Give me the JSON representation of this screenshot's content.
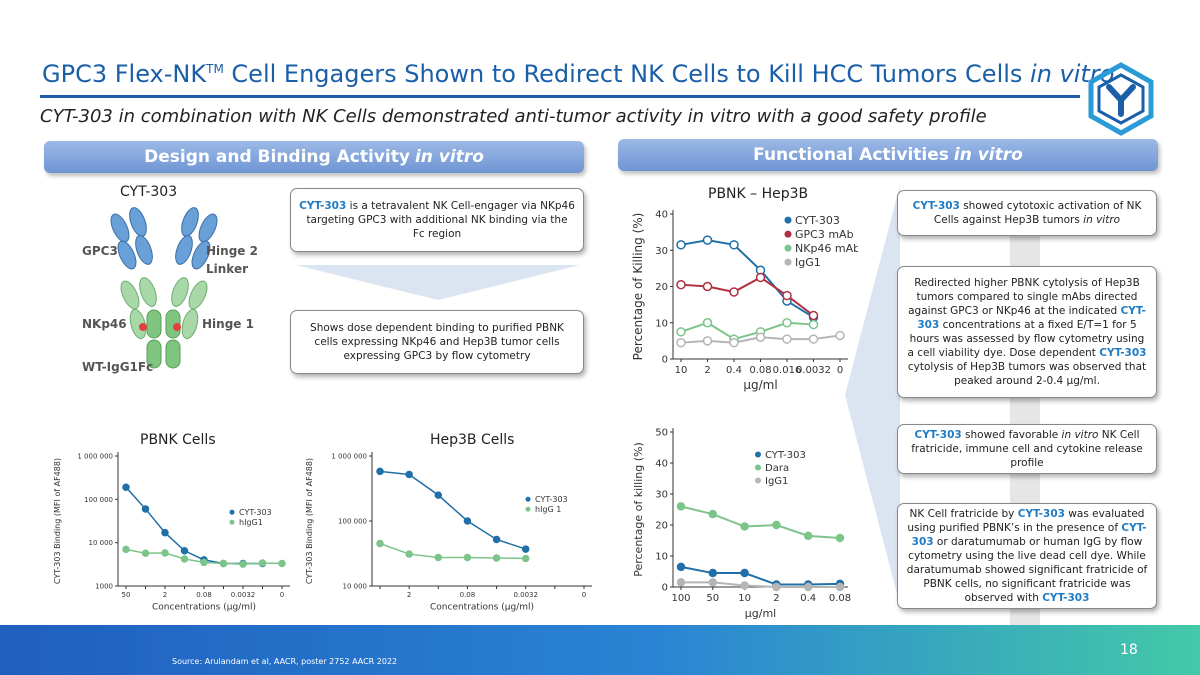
{
  "title": {
    "main": "GPC3 Flex-NK",
    "tm": "TM",
    "rest": " Cell Engagers Shown to Redirect NK Cells to Kill HCC Tumors Cells ",
    "italic": "in vitro"
  },
  "subtitle": "CYT-303 in combination with NK Cells demonstrated anti-tumor activity in vitro with a good safety profile",
  "banners": {
    "left": {
      "text": "Design and Binding Activity",
      "italic": "in vitro"
    },
    "right": {
      "text": "Functional Activities",
      "italic": "in vitro"
    }
  },
  "diagram": {
    "title": "CYT-303",
    "labels": {
      "gpc3": "GPC3",
      "hinge2a": "Hinge 2",
      "hinge2b": "Linker",
      "nkp46": "NKp46",
      "hinge1": "Hinge 1",
      "fc": "WT-IgG1Fc"
    }
  },
  "boxes": {
    "design": {
      "hl": "CYT-303",
      "rest": " is a tetravalent NK Cell-engager via NKp46 targeting GPC3 with additional NK binding via the Fc region"
    },
    "binding": "Shows dose dependent binding to purified PBNK cells expressing NKp46 and Hep3B tumor cells expressing GPC3 by flow cytometry",
    "cyto": {
      "hl": "CYT-303",
      "rest": " showed cytotoxic activation of NK Cells against Hep3B tumors ",
      "italic": "in vitro"
    },
    "redirect": {
      "t1": "Redirected higher PBNK cytolysis of Hep3B tumors compared to single mAbs directed against GPC3 or NKp46 at the indicated ",
      "hl1": "CYT-303",
      "t2": " concentrations at a fixed E/T=1 for 5 hours was assessed by flow cytometry using a cell viability dye. Dose dependent ",
      "hl2": "CYT-303",
      "t3": " cytolysis of Hep3B tumors was observed that peaked around 2-0.4 µg/ml."
    },
    "fratricide": {
      "hl": "CYT-303",
      "t1": " showed favorable ",
      "italic": "in vitro",
      "t2": " NK Cell fratricide, immune cell and cytokine release profile"
    },
    "nkfrat": {
      "t1": "NK Cell fratricide by ",
      "hl1": "CYT-303",
      "t2": " was evaluated using purified PBNK’s in the presence of ",
      "hl2": "CYT-303",
      "t3": " or daratumumab or human IgG by flow cytometry using the live dead cell dye. While daratumumab showed significant fratricide of PBNK cells, no significant fratricide was observed with ",
      "hl3": "CYT-303"
    }
  },
  "footer": {
    "source": "Source: Arulandam et al, AACR, poster 2752 AACR 2022",
    "page": "18"
  },
  "colors": {
    "brand": "#1a5fa8",
    "cyt303": "#1f6fa8",
    "gpc3": "#b03040",
    "nkp46": "#7cc48a",
    "igg1": "#b5b5b5"
  },
  "chart_data": [
    {
      "type": "line",
      "title": "PBNK – Hep3B",
      "categories": [
        "10",
        "2",
        "0.4",
        "0.08",
        "0.016",
        "0.0032",
        "0"
      ],
      "xlabel": "µg/ml",
      "ylabel": "Percentage of Killing (%)",
      "ylim": [
        0,
        40
      ],
      "yticks": [
        0,
        10,
        20,
        30,
        40
      ],
      "legend": "top-right",
      "series": [
        {
          "name": "CYT-303",
          "color": "#1f6fa8",
          "values": [
            31.5,
            32.8,
            31.5,
            24.5,
            16,
            11.5,
            null
          ]
        },
        {
          "name": "GPC3 mAb",
          "color": "#b03040",
          "values": [
            20.5,
            20,
            18.5,
            22.5,
            17.5,
            12,
            null
          ]
        },
        {
          "name": "NKp46 mAb",
          "color": "#7cc48a",
          "values": [
            7.5,
            10,
            5.5,
            7.5,
            10,
            9.5,
            null
          ]
        },
        {
          "name": "IgG1",
          "color": "#b5b5b5",
          "values": [
            4.5,
            5,
            4.5,
            6,
            5.5,
            5.5,
            6.5
          ]
        }
      ]
    },
    {
      "type": "line",
      "title": "",
      "categories": [
        "100",
        "50",
        "10",
        "2",
        "0.4",
        "0.08"
      ],
      "xlabel": "µg/ml",
      "ylabel": "Percentage of killing (%)",
      "ylim": [
        0,
        50
      ],
      "yticks": [
        0,
        10,
        20,
        30,
        40,
        50
      ],
      "legend": "top-right",
      "series": [
        {
          "name": "CYT-303",
          "color": "#1f6fa8",
          "values": [
            6.5,
            4.5,
            4.5,
            0.8,
            0.8,
            1
          ]
        },
        {
          "name": "Dara",
          "color": "#7cc48a",
          "values": [
            26,
            23.5,
            19.5,
            20,
            16.5,
            15.8
          ]
        },
        {
          "name": "IgG1",
          "color": "#b5b5b5",
          "values": [
            1.5,
            1.5,
            0.5,
            0,
            0,
            0
          ]
        }
      ]
    },
    {
      "type": "line",
      "title": "PBNK Cells",
      "scale": "log",
      "categories": [
        "50",
        "",
        "2",
        "",
        "0.08",
        "",
        "0.0032",
        "",
        "0"
      ],
      "xlabel": "Concentrations (µg/ml)",
      "ylabel": "CYT-303 Binding (MFI of AF488)",
      "ylim": [
        1000,
        1000000
      ],
      "yticks": [
        "1000",
        "10 000",
        "100 000",
        "1 000 000"
      ],
      "legend": "right",
      "series": [
        {
          "name": "CYT-303",
          "color": "#1f6fa8",
          "values": [
            190000,
            60000,
            17000,
            6500,
            4000,
            3300,
            3300,
            3300,
            null
          ]
        },
        {
          "name": "hIgG1",
          "color": "#7cc48a",
          "values": [
            7000,
            5700,
            5800,
            4200,
            3500,
            3300,
            3200,
            3400,
            3300
          ]
        }
      ]
    },
    {
      "type": "line",
      "title": "Hep3B Cells",
      "scale": "log",
      "categories": [
        "",
        "2",
        "",
        "0.08",
        "",
        "0.0032",
        "",
        "0"
      ],
      "xlabel": "Concentrations (µg/ml)",
      "ylabel": "CYT-303 Binding (MFI of AF488)",
      "ylim": [
        10000,
        1000000
      ],
      "yticks": [
        "10 000",
        "100 000",
        "1 000 000"
      ],
      "legend": "right",
      "series": [
        {
          "name": "CYT-303",
          "color": "#1f6fa8",
          "values": [
            580000,
            520000,
            250000,
            100000,
            52000,
            37000,
            null,
            null
          ]
        },
        {
          "name": "hIgG 1",
          "color": "#7cc48a",
          "values": [
            45000,
            31000,
            27500,
            27500,
            27000,
            26500,
            null,
            null
          ]
        }
      ]
    }
  ]
}
